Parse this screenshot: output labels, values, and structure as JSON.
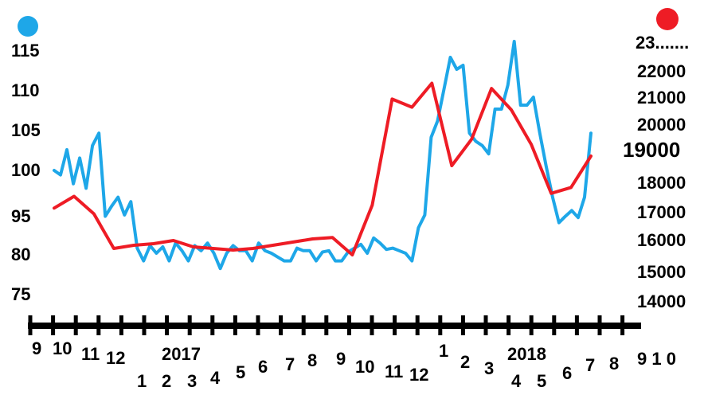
{
  "chart_data": {
    "type": "line",
    "legend": [
      {
        "marker": "left-blue-dot",
        "color": "#1ea7e8"
      },
      {
        "marker": "right-red-dot",
        "color": "#ee1c25"
      }
    ],
    "left_axis": {
      "labels": [
        "115",
        "110",
        "105",
        "100",
        "95",
        "80",
        "75"
      ]
    },
    "right_axis": {
      "labels": [
        "23.......",
        "22000",
        "21000",
        "20000",
        "19000",
        "18000",
        "17000",
        "16000",
        "15000",
        "14000"
      ]
    },
    "x_axis": {
      "labels": [
        "9",
        "10",
        "11",
        "12",
        "1",
        "2017",
        "2",
        "3",
        "4",
        "5",
        "6",
        "7",
        "8",
        "9",
        "10",
        "11",
        "12",
        "1",
        "2",
        "3",
        "2018",
        "4",
        "5",
        "6",
        "7",
        "8",
        "9 1 0"
      ]
    },
    "series": [
      {
        "color": "#1ea7e8",
        "axis": "left",
        "values": [
          100,
          99.5,
          102.5,
          98.5,
          101.5,
          98,
          103,
          104.5,
          94.5,
          96,
          97,
          95,
          96.5,
          82,
          79,
          83,
          80,
          82.5,
          79,
          84,
          81,
          79,
          83,
          81,
          84,
          80,
          78,
          80,
          83,
          81,
          81,
          79,
          84,
          81,
          80,
          79.5,
          79,
          79,
          82,
          81,
          81,
          79,
          80.5,
          81,
          79,
          79,
          80.5,
          82,
          83.5,
          80,
          86,
          84,
          81.5,
          82,
          81,
          80,
          79,
          90,
          95,
          104,
          106,
          110,
          114,
          112.5,
          113,
          104.5,
          103.5,
          103,
          102,
          107.5,
          107.5,
          110.5,
          116,
          108,
          108,
          109,
          104.5,
          100.5,
          97,
          92,
          94.5,
          95.5,
          94,
          97,
          104.5
        ]
      },
      {
        "color": "#ee1c25",
        "axis": "right",
        "values": [
          17100,
          17500,
          16900,
          15700,
          15800,
          15850,
          15950,
          15750,
          15700,
          15650,
          15700,
          15800,
          15900,
          16000,
          16050,
          15500,
          17200,
          20900,
          20600,
          21500,
          18500,
          19400,
          21300,
          20500,
          19200,
          17600,
          17800,
          18800
        ]
      }
    ]
  }
}
